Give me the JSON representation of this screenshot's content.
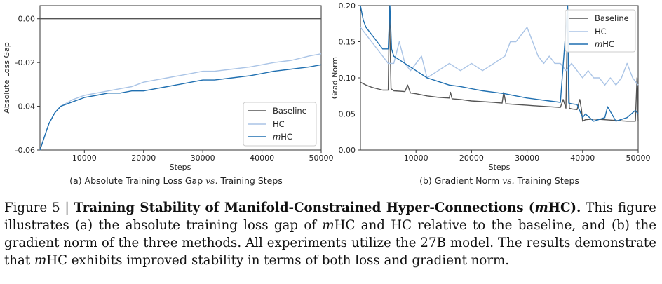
{
  "chart_data": [
    {
      "type": "line",
      "xlabel": "Steps",
      "ylabel": "Absolute Loss Gap",
      "subcaption": "(a) Absolute Training Loss Gap vs. Training Steps",
      "subcaption_prefix": "(a) Absolute Training Loss Gap ",
      "subcaption_vs": "vs.",
      "subcaption_suffix": " Training Steps",
      "xlim": [
        2500,
        50000
      ],
      "ylim": [
        -0.06,
        0.006
      ],
      "xticks": [
        10000,
        20000,
        30000,
        40000,
        50000
      ],
      "xtick_labels": [
        "10000",
        "20000",
        "30000",
        "40000",
        "50000"
      ],
      "yticks": [
        0.0,
        -0.02,
        -0.04,
        -0.06
      ],
      "ytick_labels": [
        "0.00",
        "-0.02",
        "-0.04",
        "-0.06"
      ],
      "legend_position": "lower-right",
      "grid": false,
      "series": [
        {
          "name": "Baseline",
          "color": "#555555",
          "x": [
            2500,
            50000
          ],
          "y": [
            0.0,
            0.0
          ]
        },
        {
          "name": "HC",
          "color": "#aac4e6",
          "x": [
            2500,
            3000,
            3500,
            4000,
            5000,
            6000,
            8000,
            10000,
            12000,
            14000,
            16000,
            18000,
            20000,
            22000,
            24000,
            26000,
            28000,
            30000,
            32000,
            35000,
            38000,
            40000,
            42000,
            45000,
            48000,
            50000
          ],
          "y": [
            -0.06,
            -0.056,
            -0.052,
            -0.048,
            -0.043,
            -0.04,
            -0.037,
            -0.035,
            -0.034,
            -0.033,
            -0.032,
            -0.031,
            -0.029,
            -0.028,
            -0.027,
            -0.026,
            -0.025,
            -0.024,
            -0.024,
            -0.023,
            -0.022,
            -0.021,
            -0.02,
            -0.019,
            -0.017,
            -0.016
          ]
        },
        {
          "name": "mHC",
          "name_italic": "m",
          "name_rest": "HC",
          "color": "#1f6fb0",
          "x": [
            2500,
            3000,
            3500,
            4000,
            5000,
            6000,
            8000,
            10000,
            12000,
            14000,
            16000,
            18000,
            20000,
            22000,
            24000,
            26000,
            28000,
            30000,
            32000,
            35000,
            38000,
            40000,
            42000,
            45000,
            48000,
            50000
          ],
          "y": [
            -0.06,
            -0.056,
            -0.052,
            -0.048,
            -0.043,
            -0.04,
            -0.038,
            -0.036,
            -0.035,
            -0.034,
            -0.034,
            -0.033,
            -0.033,
            -0.032,
            -0.031,
            -0.03,
            -0.029,
            -0.028,
            -0.028,
            -0.027,
            -0.026,
            -0.025,
            -0.024,
            -0.023,
            -0.022,
            -0.021
          ]
        }
      ]
    },
    {
      "type": "line",
      "xlabel": "Steps",
      "ylabel": "Grad Norm",
      "subcaption": "(b) Gradient Norm vs. Training Steps",
      "subcaption_prefix": "(b) Gradient Norm ",
      "subcaption_vs": "vs.",
      "subcaption_suffix": " Training Steps",
      "xlim": [
        0,
        50000
      ],
      "ylim": [
        0.0,
        0.2
      ],
      "xticks": [
        10000,
        20000,
        30000,
        40000,
        50000
      ],
      "xtick_labels": [
        "10000",
        "20000",
        "30000",
        "40000",
        "50000"
      ],
      "yticks": [
        0.0,
        0.05,
        0.1,
        0.15,
        0.2
      ],
      "ytick_labels": [
        "0.00",
        "0.05",
        "0.10",
        "0.15",
        "0.20"
      ],
      "legend_position": "upper-right",
      "grid": false,
      "series": [
        {
          "name": "Baseline",
          "color": "#555555",
          "x": [
            0,
            1000,
            2000,
            3000,
            4000,
            5000,
            5200,
            5500,
            6000,
            8000,
            8500,
            9000,
            10000,
            12000,
            14000,
            16000,
            16200,
            16500,
            18000,
            20000,
            22000,
            24000,
            25500,
            25800,
            26200,
            28000,
            30000,
            32000,
            34000,
            36000,
            36500,
            37000,
            37300,
            37600,
            38000,
            39000,
            39500,
            39800,
            40000,
            40500,
            42000,
            44000,
            46000,
            48000,
            49500,
            49800,
            50000
          ],
          "y": [
            0.094,
            0.09,
            0.087,
            0.085,
            0.083,
            0.083,
            0.2,
            0.085,
            0.082,
            0.081,
            0.09,
            0.079,
            0.078,
            0.075,
            0.073,
            0.072,
            0.08,
            0.071,
            0.07,
            0.068,
            0.067,
            0.066,
            0.065,
            0.08,
            0.064,
            0.063,
            0.062,
            0.061,
            0.06,
            0.059,
            0.07,
            0.058,
            0.2,
            0.058,
            0.057,
            0.056,
            0.07,
            0.056,
            0.04,
            0.042,
            0.043,
            0.042,
            0.041,
            0.04,
            0.04,
            0.1,
            0.04
          ]
        },
        {
          "name": "HC",
          "color": "#aac4e6",
          "x": [
            0,
            1000,
            2000,
            3000,
            4000,
            5000,
            6000,
            7000,
            8000,
            9000,
            10000,
            11000,
            12000,
            14000,
            16000,
            18000,
            20000,
            22000,
            24000,
            26000,
            27000,
            28000,
            29000,
            30000,
            31000,
            32000,
            33000,
            34000,
            35000,
            36000,
            37000,
            38000,
            39000,
            40000,
            41000,
            42000,
            43000,
            44000,
            45000,
            46000,
            47000,
            48000,
            49000,
            50000
          ],
          "y": [
            0.17,
            0.16,
            0.15,
            0.14,
            0.13,
            0.12,
            0.12,
            0.15,
            0.12,
            0.11,
            0.12,
            0.13,
            0.1,
            0.11,
            0.12,
            0.11,
            0.12,
            0.11,
            0.12,
            0.13,
            0.15,
            0.15,
            0.16,
            0.17,
            0.15,
            0.13,
            0.12,
            0.13,
            0.12,
            0.12,
            0.11,
            0.12,
            0.11,
            0.1,
            0.11,
            0.1,
            0.1,
            0.09,
            0.1,
            0.09,
            0.1,
            0.12,
            0.1,
            0.09
          ]
        },
        {
          "name": "mHC",
          "name_italic": "m",
          "name_rest": "HC",
          "color": "#1f6fb0",
          "x": [
            0,
            500,
            1000,
            2000,
            3000,
            4000,
            5000,
            5300,
            5600,
            6000,
            8000,
            10000,
            12000,
            14000,
            16000,
            18000,
            20000,
            22000,
            24000,
            26000,
            28000,
            30000,
            32000,
            34000,
            36000,
            37300,
            37500,
            38000,
            39000,
            40000,
            40500,
            42000,
            44000,
            44500,
            46000,
            48000,
            49500,
            50000
          ],
          "y": [
            0.2,
            0.18,
            0.17,
            0.16,
            0.15,
            0.14,
            0.14,
            0.2,
            0.14,
            0.13,
            0.12,
            0.11,
            0.1,
            0.095,
            0.09,
            0.088,
            0.085,
            0.082,
            0.08,
            0.078,
            0.075,
            0.072,
            0.07,
            0.068,
            0.066,
            0.2,
            0.065,
            0.064,
            0.063,
            0.045,
            0.05,
            0.04,
            0.045,
            0.06,
            0.04,
            0.045,
            0.055,
            0.05
          ]
        }
      ]
    }
  ],
  "caption": {
    "label": "Figure 5 | ",
    "title_prefix": "Training Stability of Manifold-Constrained Hyper-Connections (",
    "title_italic": "m",
    "title_suffix": "HC).",
    "text_1": " This figure illustrates (a) the absolute training loss gap of ",
    "italic_1": "m",
    "text_2": "HC and HC relative to the baseline, and (b) the gradient norm of the three methods.  All experiments utilize the 27B model.  The results demonstrate that ",
    "italic_2": "m",
    "text_3": "HC exhibits improved stability in terms of both loss and gradient norm."
  }
}
